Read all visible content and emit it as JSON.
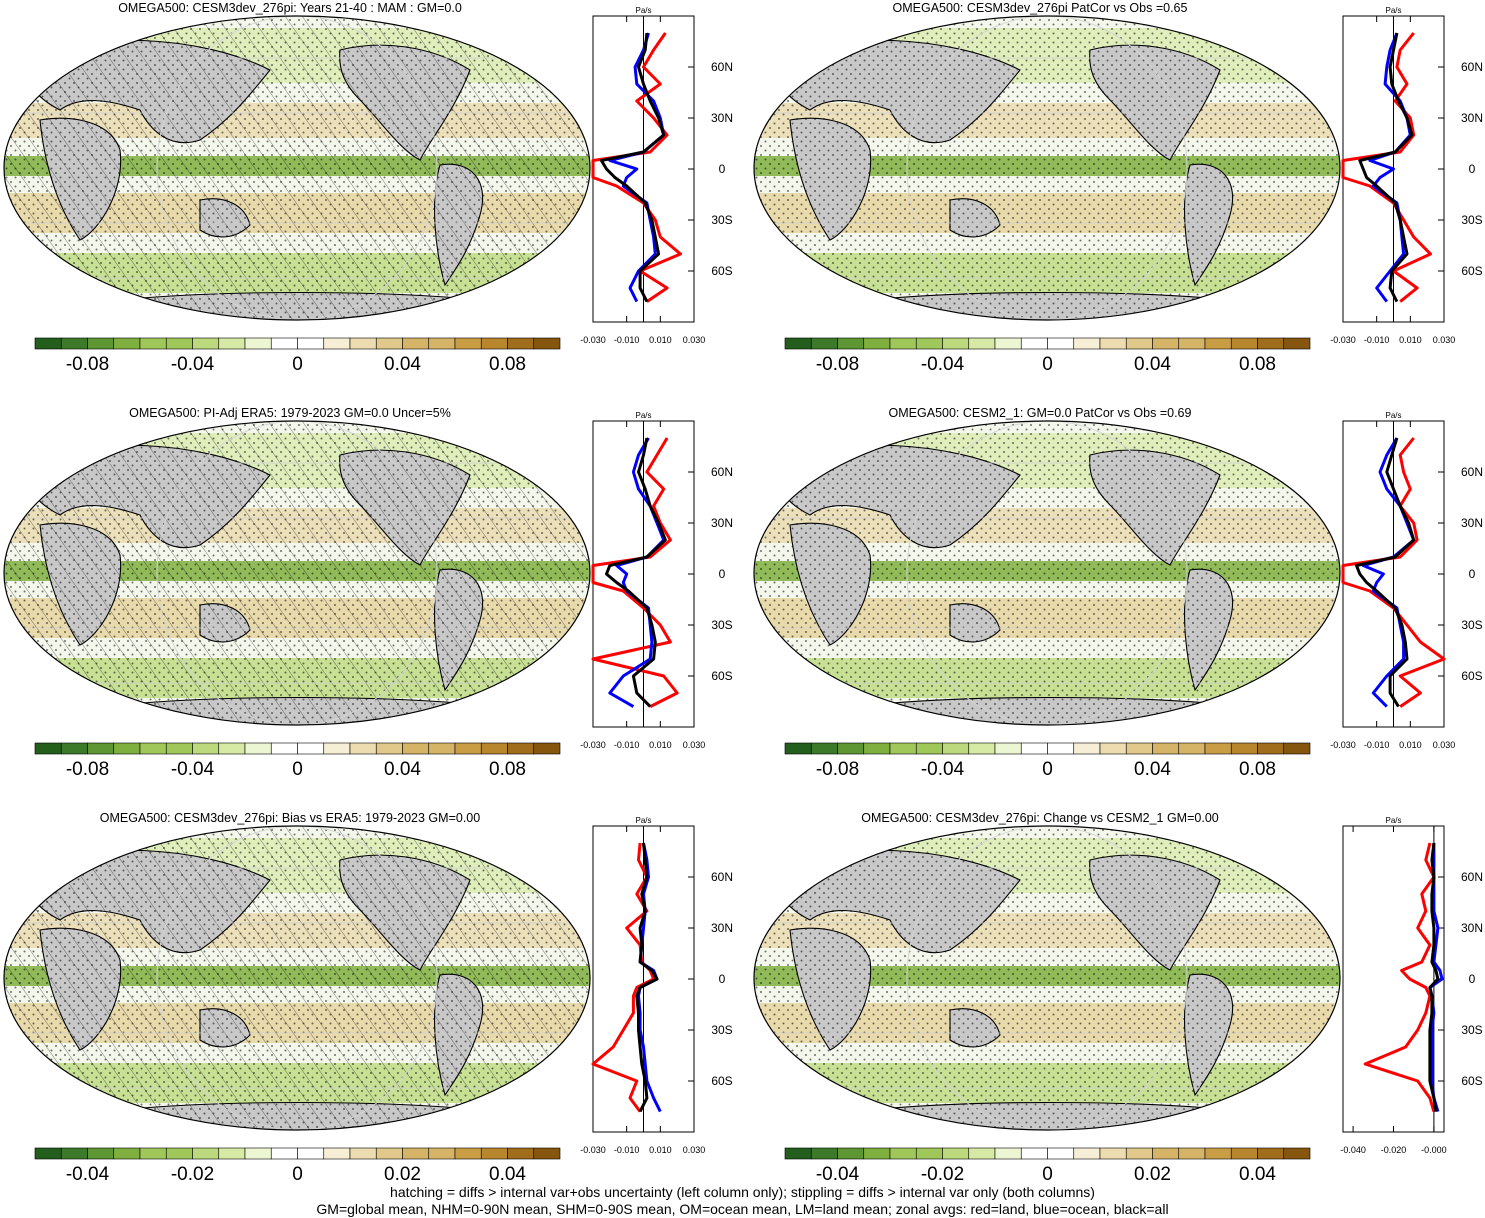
{
  "figure": {
    "variable": "OMEGA500",
    "footer": [
      "hatching = diffs > internal var+obs uncertainty (left column only); stippling = diffs > internal var only (both columns)",
      "GM=global mean, NHM=0-90N mean, SHM=0-90S mean, OM=ocean mean, LM=land mean; zonal avgs: red=land, blue=ocean, black=all"
    ],
    "colors": {
      "land_zonal": "#ff0000",
      "ocean_zonal": "#0000ff",
      "all_zonal": "#000000",
      "landmask": "#c8c8c8"
    }
  },
  "chart_data": [
    {
      "type": "heatmap",
      "title": "OMEGA500: CESM3dev_276pi: Years 21-40 : MAM : GM=0.0",
      "projection": "Robinson",
      "hatching": true,
      "stippling": true,
      "colorbar": {
        "colormap": "green-white-brown",
        "levels": 20,
        "range": [
          -0.1,
          0.1
        ],
        "tick_labels": [
          "-0.08",
          "-0.04",
          "0",
          "0.04",
          "0.08"
        ]
      },
      "zonal_mean": {
        "units": "Pa/s",
        "xlim": [
          -0.03,
          0.03
        ],
        "x_tick_labels": [
          "-0.030",
          "-0.010",
          "0.010",
          "0.030"
        ],
        "lat_tick_labels": [
          "60N",
          "30N",
          "0",
          "30S",
          "60S"
        ],
        "latitudes": [
          80,
          70,
          60,
          50,
          40,
          30,
          20,
          10,
          5,
          0,
          -5,
          -10,
          -20,
          -30,
          -40,
          -50,
          -60,
          -70,
          -78
        ],
        "land": [
          0.013,
          0.006,
          0.0,
          0.01,
          -0.004,
          0.006,
          0.014,
          0.004,
          -0.04,
          -0.05,
          -0.04,
          -0.016,
          0.0,
          0.007,
          0.01,
          0.022,
          -0.002,
          0.014,
          0.002
        ],
        "ocean": [
          0.003,
          0.0,
          -0.005,
          -0.004,
          0.006,
          0.01,
          0.012,
          0.0,
          -0.02,
          -0.004,
          -0.01,
          -0.012,
          0.002,
          0.004,
          0.006,
          0.007,
          -0.003,
          -0.008,
          -0.004
        ],
        "all": [
          0.002,
          0.001,
          -0.003,
          0.0,
          0.004,
          0.009,
          0.012,
          0.0,
          -0.025,
          -0.022,
          -0.017,
          -0.01,
          0.001,
          0.005,
          0.007,
          0.009,
          -0.002,
          -0.002,
          0.002
        ]
      }
    },
    {
      "type": "heatmap",
      "title": "OMEGA500: CESM3dev_276pi PatCor vs Obs =0.65",
      "projection": "Robinson",
      "hatching": false,
      "stippling": true,
      "colorbar": {
        "colormap": "green-white-brown",
        "levels": 20,
        "range": [
          -0.1,
          0.1
        ],
        "tick_labels": [
          "-0.08",
          "-0.04",
          "0",
          "0.04",
          "0.08"
        ]
      },
      "zonal_mean": {
        "units": "Pa/s",
        "xlim": [
          -0.03,
          0.03
        ],
        "x_tick_labels": [
          "-0.030",
          "-0.010",
          "0.010",
          "0.030"
        ],
        "lat_tick_labels": [
          "60N",
          "30N",
          "0",
          "30S",
          "60S"
        ],
        "latitudes": [
          80,
          70,
          60,
          50,
          40,
          30,
          20,
          10,
          5,
          0,
          -5,
          -10,
          -20,
          -30,
          -40,
          -50,
          -60,
          -70,
          -78
        ],
        "land": [
          0.012,
          0.004,
          0.002,
          0.008,
          0.001,
          0.01,
          0.012,
          0.004,
          -0.04,
          -0.045,
          -0.038,
          -0.014,
          0.0,
          0.006,
          0.012,
          0.022,
          0.0,
          0.014,
          0.004
        ],
        "ocean": [
          0.002,
          -0.002,
          -0.004,
          -0.005,
          0.004,
          0.008,
          0.01,
          0.001,
          -0.014,
          0.0,
          -0.008,
          -0.012,
          0.002,
          0.004,
          0.005,
          0.006,
          -0.002,
          -0.01,
          -0.004
        ],
        "all": [
          0.002,
          0.0,
          -0.002,
          -0.001,
          0.003,
          0.008,
          0.011,
          0.001,
          -0.02,
          -0.018,
          -0.016,
          -0.01,
          0.001,
          0.004,
          0.006,
          0.008,
          -0.001,
          -0.002,
          0.002
        ]
      }
    },
    {
      "type": "heatmap",
      "title": "OMEGA500: PI-Adj ERA5: 1979-2023 GM=0.0 Uncer=5%",
      "projection": "Robinson",
      "hatching": true,
      "stippling": true,
      "colorbar": {
        "colormap": "green-white-brown",
        "levels": 20,
        "range": [
          -0.1,
          0.1
        ],
        "tick_labels": [
          "-0.08",
          "-0.04",
          "0",
          "0.04",
          "0.08"
        ]
      },
      "zonal_mean": {
        "units": "Pa/s",
        "xlim": [
          -0.03,
          0.03
        ],
        "x_tick_labels": [
          "-0.030",
          "-0.010",
          "0.010",
          "0.030"
        ],
        "lat_tick_labels": [
          "60N",
          "30N",
          "0",
          "30S",
          "60S"
        ],
        "latitudes": [
          80,
          70,
          60,
          50,
          40,
          30,
          20,
          10,
          5,
          0,
          -5,
          -10,
          -20,
          -30,
          -40,
          -50,
          -60,
          -70,
          -78
        ],
        "land": [
          0.014,
          0.008,
          0.002,
          0.012,
          0.006,
          0.01,
          0.016,
          0.004,
          -0.035,
          -0.048,
          -0.032,
          -0.012,
          0.0,
          0.01,
          0.016,
          -0.03,
          0.012,
          0.02,
          0.004
        ],
        "ocean": [
          0.003,
          -0.003,
          -0.006,
          -0.003,
          0.004,
          0.008,
          0.012,
          0.002,
          -0.016,
          -0.01,
          -0.012,
          -0.01,
          0.003,
          0.004,
          0.005,
          0.004,
          -0.012,
          -0.02,
          -0.006
        ],
        "all": [
          0.002,
          0.0,
          -0.003,
          0.001,
          0.004,
          0.009,
          0.013,
          0.002,
          -0.02,
          -0.022,
          -0.016,
          -0.009,
          0.002,
          0.005,
          0.007,
          0.006,
          -0.006,
          -0.004,
          0.004
        ]
      }
    },
    {
      "type": "heatmap",
      "title": "OMEGA500: CESM2_1: GM=0.0 PatCor vs Obs =0.69",
      "projection": "Robinson",
      "hatching": false,
      "stippling": true,
      "colorbar": {
        "colormap": "green-white-brown",
        "levels": 20,
        "range": [
          -0.1,
          0.1
        ],
        "tick_labels": [
          "-0.08",
          "-0.04",
          "0",
          "0.04",
          "0.08"
        ]
      },
      "zonal_mean": {
        "units": "Pa/s",
        "xlim": [
          -0.03,
          0.03
        ],
        "x_tick_labels": [
          "-0.030",
          "-0.010",
          "0.010",
          "0.030"
        ],
        "lat_tick_labels": [
          "60N",
          "30N",
          "0",
          "30S",
          "60S"
        ],
        "latitudes": [
          80,
          70,
          60,
          50,
          40,
          30,
          20,
          10,
          5,
          0,
          -5,
          -10,
          -20,
          -30,
          -40,
          -50,
          -60,
          -70,
          -78
        ],
        "land": [
          0.012,
          0.004,
          0.006,
          0.01,
          0.004,
          0.012,
          0.014,
          0.004,
          -0.036,
          -0.046,
          -0.034,
          -0.014,
          0.0,
          0.008,
          0.016,
          0.032,
          0.004,
          0.016,
          0.004
        ],
        "ocean": [
          0.002,
          -0.004,
          -0.008,
          -0.004,
          0.004,
          0.008,
          0.012,
          0.0,
          -0.018,
          -0.006,
          -0.01,
          -0.012,
          0.002,
          0.004,
          0.006,
          0.006,
          -0.004,
          -0.012,
          -0.004
        ],
        "all": [
          0.002,
          -0.001,
          -0.004,
          0.0,
          0.004,
          0.009,
          0.012,
          0.001,
          -0.022,
          -0.02,
          -0.016,
          -0.01,
          0.001,
          0.005,
          0.007,
          0.008,
          -0.002,
          -0.002,
          0.003
        ]
      }
    },
    {
      "type": "heatmap",
      "title": "OMEGA500: CESM3dev_276pi: Bias vs ERA5: 1979-2023 GM=0.00",
      "projection": "Robinson",
      "hatching": true,
      "stippling": true,
      "colorbar": {
        "colormap": "green-white-brown",
        "levels": 20,
        "range": [
          -0.05,
          0.05
        ],
        "tick_labels": [
          "-0.04",
          "-0.02",
          "0",
          "0.02",
          "0.04"
        ]
      },
      "zonal_mean": {
        "units": "Pa/s",
        "xlim": [
          -0.03,
          0.03
        ],
        "x_tick_labels": [
          "-0.030",
          "-0.010",
          "0.010",
          "0.030"
        ],
        "lat_tick_labels": [
          "60N",
          "30N",
          "0",
          "30S",
          "60S"
        ],
        "latitudes": [
          80,
          70,
          60,
          50,
          40,
          30,
          20,
          10,
          5,
          0,
          -5,
          -10,
          -20,
          -30,
          -40,
          -50,
          -60,
          -70,
          -78
        ],
        "land": [
          -0.002,
          -0.003,
          0.002,
          -0.004,
          0.002,
          -0.01,
          -0.002,
          -0.001,
          0.004,
          0.006,
          -0.004,
          -0.006,
          -0.006,
          -0.012,
          -0.018,
          -0.03,
          -0.004,
          -0.008,
          -0.002
        ],
        "ocean": [
          0.0,
          0.002,
          0.003,
          0.0,
          0.001,
          0.0,
          -0.001,
          -0.002,
          0.006,
          0.008,
          -0.002,
          -0.003,
          -0.002,
          -0.002,
          0.0,
          0.001,
          0.002,
          0.006,
          0.01
        ],
        "all": [
          0.0,
          0.001,
          0.002,
          -0.001,
          0.001,
          -0.002,
          -0.001,
          -0.002,
          0.005,
          0.008,
          -0.002,
          -0.004,
          -0.003,
          -0.003,
          -0.002,
          -0.001,
          0.001,
          0.002,
          -0.002
        ]
      }
    },
    {
      "type": "heatmap",
      "title": "OMEGA500: CESM3dev_276pi: Change vs CESM2_1 GM=0.00",
      "projection": "Robinson",
      "hatching": false,
      "stippling": true,
      "colorbar": {
        "colormap": "green-white-brown",
        "levels": 20,
        "range": [
          -0.05,
          0.05
        ],
        "tick_labels": [
          "-0.04",
          "-0.02",
          "0",
          "0.02",
          "0.04"
        ]
      },
      "zonal_mean": {
        "units": "Pa/s",
        "xlim": [
          -0.045,
          0.005
        ],
        "x_tick_labels": [
          "-0.040",
          "-0.020",
          "-0.000"
        ],
        "lat_tick_labels": [
          "60N",
          "30N",
          "0",
          "30S",
          "60S"
        ],
        "latitudes": [
          80,
          70,
          60,
          50,
          40,
          30,
          20,
          10,
          5,
          0,
          -5,
          -10,
          -20,
          -30,
          -40,
          -50,
          -60,
          -70,
          -78
        ],
        "land": [
          -0.002,
          -0.004,
          0.0,
          -0.006,
          -0.004,
          -0.008,
          -0.002,
          -0.006,
          -0.016,
          -0.012,
          -0.004,
          -0.002,
          -0.004,
          -0.008,
          -0.014,
          -0.034,
          -0.008,
          -0.002,
          0.0
        ],
        "ocean": [
          0.0,
          0.0,
          0.0,
          0.0,
          0.0,
          0.002,
          0.001,
          0.0,
          0.003,
          0.004,
          -0.002,
          -0.001,
          0.0,
          -0.001,
          -0.001,
          -0.001,
          -0.001,
          0.0,
          0.002
        ],
        "all": [
          0.0,
          -0.001,
          0.0,
          -0.001,
          -0.001,
          0.0,
          0.0,
          -0.001,
          0.001,
          0.002,
          -0.002,
          -0.001,
          -0.001,
          -0.002,
          -0.002,
          -0.002,
          -0.002,
          0.0,
          0.001
        ]
      }
    }
  ]
}
